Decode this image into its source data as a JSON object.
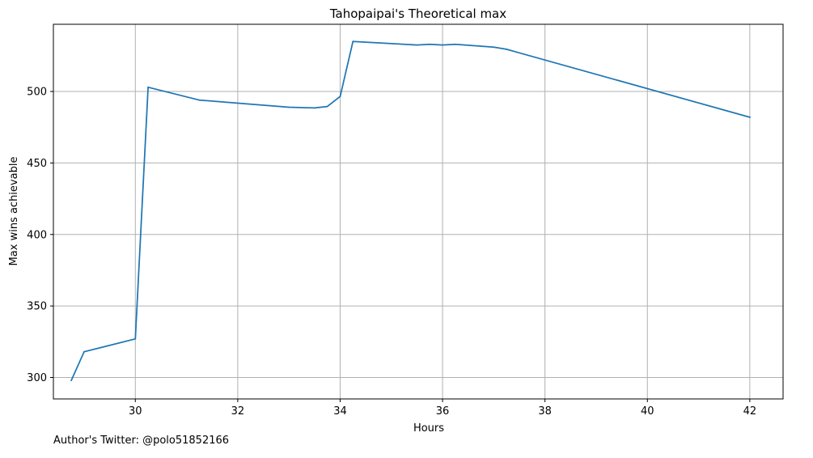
{
  "chart_data": {
    "type": "line",
    "title": "Tahopaipai's Theoretical max",
    "xlabel": "Hours",
    "ylabel": "Max wins achievable",
    "xlim": [
      28.4,
      42.65
    ],
    "ylim": [
      285,
      547
    ],
    "xticks": [
      30,
      32,
      34,
      36,
      38,
      40,
      42
    ],
    "yticks": [
      300,
      350,
      400,
      450,
      500
    ],
    "grid": true,
    "line_color": "#1f77b4",
    "series": [
      {
        "x": [
          28.75,
          29.0,
          30.0,
          30.25,
          31.25,
          33.0,
          33.5,
          33.75,
          34.0,
          34.25,
          35.5,
          35.75,
          36.0,
          36.25,
          37.0,
          37.25,
          42.0
        ],
        "values": [
          298,
          318,
          327,
          503,
          494,
          489,
          488.5,
          489.5,
          496.5,
          535,
          532.5,
          533,
          532.5,
          533,
          531,
          529.5,
          482
        ]
      }
    ]
  },
  "footnote": "Author's Twitter: @polo51852166"
}
